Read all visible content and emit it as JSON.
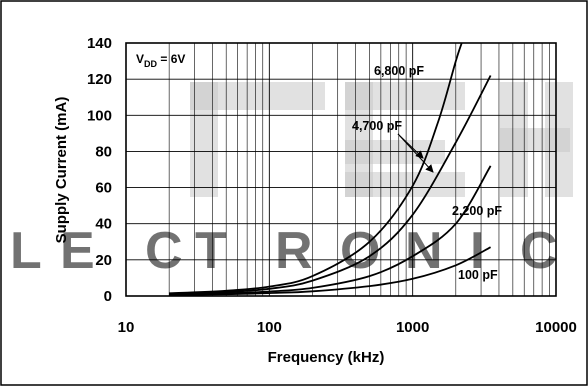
{
  "chart_data": {
    "type": "line",
    "xscale": "log",
    "xlabel": "Frequency (kHz)",
    "ylabel": "Supply Current (mA)",
    "xlim": [
      10,
      10000
    ],
    "ylim": [
      0,
      140
    ],
    "xticks": [
      "10",
      "100",
      "1000",
      "10000"
    ],
    "yticks": [
      "0",
      "20",
      "40",
      "60",
      "80",
      "100",
      "120",
      "140"
    ],
    "grid": true,
    "condition": {
      "main": "V",
      "sub": "DD",
      "rest": " = 6V"
    },
    "series": [
      {
        "name": "6,800 pF",
        "x": [
          20,
          50,
          100,
          200,
          500,
          1000,
          1500,
          2000,
          2200
        ],
        "y": [
          1.5,
          2.9,
          5.2,
          11,
          30,
          61,
          96,
          130,
          140
        ]
      },
      {
        "name": "4,700 pF",
        "x": [
          20,
          50,
          100,
          200,
          500,
          1000,
          2000,
          3500
        ],
        "y": [
          1.2,
          2.2,
          4,
          8.5,
          22,
          45,
          85,
          122
        ]
      },
      {
        "name": "2,200 pF",
        "x": [
          20,
          50,
          100,
          200,
          500,
          1000,
          2000,
          3500
        ],
        "y": [
          0.9,
          1.5,
          2.5,
          4.5,
          11,
          22,
          40,
          72
        ]
      },
      {
        "name": "100 pF",
        "x": [
          20,
          50,
          100,
          200,
          500,
          1000,
          2000,
          3500
        ],
        "y": [
          0.6,
          1,
          1.6,
          2.6,
          5.5,
          9.5,
          17,
          27
        ]
      }
    ]
  }
}
